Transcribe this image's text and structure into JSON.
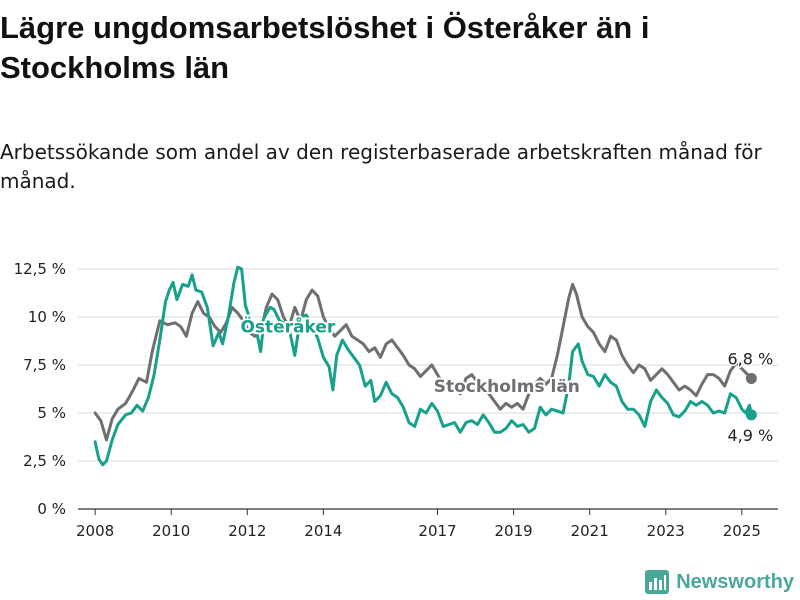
{
  "title": "Lägre ungdomsarbetslöshet i Österåker än i Stockholms län",
  "subtitle": "Arbetssökande som andel av den registerbaserade arbetskraften månad för månad.",
  "brand": {
    "name": "Newsworthy",
    "icon": "bar-chart-logo-icon"
  },
  "colors": {
    "osteraker": "#17a08c",
    "stockholm": "#6e6e73",
    "grid": "#d9d9d9",
    "axis": "#333333"
  },
  "chart_data": {
    "type": "line",
    "xlim": [
      2007.55,
      2025.95
    ],
    "ylim": [
      0,
      12.5
    ],
    "x_ticks": [
      {
        "value": 2008,
        "label": "2008"
      },
      {
        "value": 2010,
        "label": "2010"
      },
      {
        "value": 2012,
        "label": "2012"
      },
      {
        "value": 2014,
        "label": "2014"
      },
      {
        "value": 2017,
        "label": "2017"
      },
      {
        "value": 2019,
        "label": "2019"
      },
      {
        "value": 2021,
        "label": "2021"
      },
      {
        "value": 2023,
        "label": "2023"
      },
      {
        "value": 2025,
        "label": "2025"
      }
    ],
    "y_ticks": [
      {
        "value": 0,
        "label": "0 %"
      },
      {
        "value": 2.5,
        "label": "2,5 %"
      },
      {
        "value": 5,
        "label": "5 %"
      },
      {
        "value": 7.5,
        "label": "7,5 %"
      },
      {
        "value": 10,
        "label": "10 %"
      },
      {
        "value": 12.5,
        "label": "12,5 %"
      }
    ],
    "grid": true,
    "series": [
      {
        "name": "Stockholms län",
        "end_label": "6,8 %",
        "points": [
          [
            2008.0,
            5.0
          ],
          [
            2008.15,
            4.6
          ],
          [
            2008.3,
            3.6
          ],
          [
            2008.45,
            4.7
          ],
          [
            2008.6,
            5.2
          ],
          [
            2008.8,
            5.5
          ],
          [
            2009.0,
            6.2
          ],
          [
            2009.15,
            6.8
          ],
          [
            2009.35,
            6.6
          ],
          [
            2009.5,
            8.2
          ],
          [
            2009.7,
            9.8
          ],
          [
            2009.9,
            9.6
          ],
          [
            2010.1,
            9.7
          ],
          [
            2010.25,
            9.5
          ],
          [
            2010.4,
            9.0
          ],
          [
            2010.55,
            10.2
          ],
          [
            2010.7,
            10.8
          ],
          [
            2010.85,
            10.2
          ],
          [
            2011.0,
            10.0
          ],
          [
            2011.15,
            9.5
          ],
          [
            2011.3,
            9.2
          ],
          [
            2011.45,
            9.7
          ],
          [
            2011.6,
            10.5
          ],
          [
            2011.75,
            10.2
          ],
          [
            2011.9,
            9.8
          ],
          [
            2012.05,
            9.2
          ],
          [
            2012.2,
            9.0
          ],
          [
            2012.35,
            9.2
          ],
          [
            2012.5,
            10.5
          ],
          [
            2012.65,
            11.2
          ],
          [
            2012.8,
            10.9
          ],
          [
            2012.95,
            10.0
          ],
          [
            2013.1,
            9.5
          ],
          [
            2013.25,
            10.5
          ],
          [
            2013.4,
            9.8
          ],
          [
            2013.55,
            10.9
          ],
          [
            2013.7,
            11.4
          ],
          [
            2013.85,
            11.1
          ],
          [
            2014.0,
            10.0
          ],
          [
            2014.15,
            9.4
          ],
          [
            2014.3,
            9.0
          ],
          [
            2014.45,
            9.3
          ],
          [
            2014.6,
            9.6
          ],
          [
            2014.75,
            9.0
          ],
          [
            2014.9,
            8.8
          ],
          [
            2015.05,
            8.6
          ],
          [
            2015.2,
            8.2
          ],
          [
            2015.35,
            8.4
          ],
          [
            2015.5,
            7.9
          ],
          [
            2015.65,
            8.6
          ],
          [
            2015.8,
            8.8
          ],
          [
            2015.95,
            8.4
          ],
          [
            2016.1,
            8.0
          ],
          [
            2016.25,
            7.5
          ],
          [
            2016.4,
            7.3
          ],
          [
            2016.55,
            6.9
          ],
          [
            2016.7,
            7.2
          ],
          [
            2016.85,
            7.5
          ],
          [
            2017.0,
            7.0
          ],
          [
            2017.15,
            6.5
          ],
          [
            2017.3,
            6.6
          ],
          [
            2017.45,
            6.3
          ],
          [
            2017.6,
            6.0
          ],
          [
            2017.75,
            6.8
          ],
          [
            2017.9,
            7.0
          ],
          [
            2018.05,
            6.6
          ],
          [
            2018.2,
            6.3
          ],
          [
            2018.35,
            6.0
          ],
          [
            2018.5,
            5.6
          ],
          [
            2018.65,
            5.2
          ],
          [
            2018.8,
            5.5
          ],
          [
            2018.95,
            5.3
          ],
          [
            2019.1,
            5.5
          ],
          [
            2019.25,
            5.2
          ],
          [
            2019.4,
            6.0
          ],
          [
            2019.55,
            6.5
          ],
          [
            2019.7,
            6.8
          ],
          [
            2019.85,
            6.5
          ],
          [
            2020.0,
            6.8
          ],
          [
            2020.15,
            8.0
          ],
          [
            2020.3,
            9.5
          ],
          [
            2020.45,
            11.0
          ],
          [
            2020.55,
            11.7
          ],
          [
            2020.65,
            11.2
          ],
          [
            2020.8,
            10.0
          ],
          [
            2020.95,
            9.5
          ],
          [
            2021.1,
            9.2
          ],
          [
            2021.25,
            8.6
          ],
          [
            2021.4,
            8.2
          ],
          [
            2021.55,
            9.0
          ],
          [
            2021.7,
            8.8
          ],
          [
            2021.85,
            8.0
          ],
          [
            2022.0,
            7.5
          ],
          [
            2022.15,
            7.1
          ],
          [
            2022.3,
            7.5
          ],
          [
            2022.45,
            7.3
          ],
          [
            2022.6,
            6.7
          ],
          [
            2022.75,
            7.0
          ],
          [
            2022.9,
            7.3
          ],
          [
            2023.05,
            7.0
          ],
          [
            2023.2,
            6.6
          ],
          [
            2023.35,
            6.2
          ],
          [
            2023.5,
            6.4
          ],
          [
            2023.65,
            6.2
          ],
          [
            2023.8,
            5.9
          ],
          [
            2023.95,
            6.5
          ],
          [
            2024.1,
            7.0
          ],
          [
            2024.25,
            7.0
          ],
          [
            2024.4,
            6.8
          ],
          [
            2024.55,
            6.4
          ],
          [
            2024.7,
            7.2
          ],
          [
            2024.85,
            7.6
          ],
          [
            2025.0,
            7.3
          ],
          [
            2025.15,
            7.0
          ],
          [
            2025.25,
            6.8
          ]
        ]
      },
      {
        "name": "Österåker",
        "end_label": "4,9 %",
        "points": [
          [
            2008.0,
            3.5
          ],
          [
            2008.1,
            2.6
          ],
          [
            2008.2,
            2.3
          ],
          [
            2008.3,
            2.5
          ],
          [
            2008.45,
            3.6
          ],
          [
            2008.6,
            4.4
          ],
          [
            2008.8,
            4.9
          ],
          [
            2008.95,
            5.0
          ],
          [
            2009.1,
            5.4
          ],
          [
            2009.25,
            5.1
          ],
          [
            2009.4,
            5.8
          ],
          [
            2009.55,
            7.0
          ],
          [
            2009.7,
            8.8
          ],
          [
            2009.85,
            10.8
          ],
          [
            2009.95,
            11.4
          ],
          [
            2010.05,
            11.8
          ],
          [
            2010.15,
            10.9
          ],
          [
            2010.3,
            11.7
          ],
          [
            2010.45,
            11.6
          ],
          [
            2010.55,
            12.2
          ],
          [
            2010.65,
            11.4
          ],
          [
            2010.8,
            11.3
          ],
          [
            2010.95,
            10.5
          ],
          [
            2011.1,
            8.5
          ],
          [
            2011.25,
            9.2
          ],
          [
            2011.35,
            8.6
          ],
          [
            2011.5,
            10.0
          ],
          [
            2011.65,
            11.8
          ],
          [
            2011.75,
            12.6
          ],
          [
            2011.85,
            12.5
          ],
          [
            2011.95,
            10.6
          ],
          [
            2012.1,
            9.7
          ],
          [
            2012.25,
            9.2
          ],
          [
            2012.35,
            8.2
          ],
          [
            2012.45,
            10.0
          ],
          [
            2012.6,
            10.5
          ],
          [
            2012.7,
            10.4
          ],
          [
            2012.85,
            9.8
          ],
          [
            2012.95,
            9.7
          ],
          [
            2013.1,
            9.4
          ],
          [
            2013.25,
            8.0
          ],
          [
            2013.4,
            10.0
          ],
          [
            2013.55,
            10.1
          ],
          [
            2013.7,
            9.5
          ],
          [
            2013.85,
            8.9
          ],
          [
            2014.0,
            7.9
          ],
          [
            2014.15,
            7.4
          ],
          [
            2014.25,
            6.2
          ],
          [
            2014.35,
            8.0
          ],
          [
            2014.5,
            8.8
          ],
          [
            2014.65,
            8.3
          ],
          [
            2014.8,
            7.9
          ],
          [
            2014.95,
            7.5
          ],
          [
            2015.1,
            6.4
          ],
          [
            2015.25,
            6.7
          ],
          [
            2015.35,
            5.6
          ],
          [
            2015.5,
            5.9
          ],
          [
            2015.65,
            6.6
          ],
          [
            2015.8,
            6.0
          ],
          [
            2015.95,
            5.8
          ],
          [
            2016.1,
            5.3
          ],
          [
            2016.25,
            4.5
          ],
          [
            2016.4,
            4.3
          ],
          [
            2016.55,
            5.2
          ],
          [
            2016.7,
            5.0
          ],
          [
            2016.85,
            5.5
          ],
          [
            2017.0,
            5.1
          ],
          [
            2017.15,
            4.3
          ],
          [
            2017.3,
            4.4
          ],
          [
            2017.45,
            4.5
          ],
          [
            2017.6,
            4.0
          ],
          [
            2017.75,
            4.5
          ],
          [
            2017.9,
            4.6
          ],
          [
            2018.05,
            4.4
          ],
          [
            2018.2,
            4.9
          ],
          [
            2018.35,
            4.5
          ],
          [
            2018.5,
            4.0
          ],
          [
            2018.65,
            4.0
          ],
          [
            2018.8,
            4.2
          ],
          [
            2018.95,
            4.6
          ],
          [
            2019.1,
            4.3
          ],
          [
            2019.25,
            4.4
          ],
          [
            2019.4,
            4.0
          ],
          [
            2019.55,
            4.2
          ],
          [
            2019.7,
            5.3
          ],
          [
            2019.85,
            4.9
          ],
          [
            2020.0,
            5.2
          ],
          [
            2020.15,
            5.1
          ],
          [
            2020.3,
            5.0
          ],
          [
            2020.45,
            6.5
          ],
          [
            2020.55,
            8.2
          ],
          [
            2020.7,
            8.6
          ],
          [
            2020.8,
            7.7
          ],
          [
            2020.95,
            7.0
          ],
          [
            2021.1,
            6.9
          ],
          [
            2021.25,
            6.4
          ],
          [
            2021.4,
            7.0
          ],
          [
            2021.55,
            6.6
          ],
          [
            2021.7,
            6.4
          ],
          [
            2021.85,
            5.6
          ],
          [
            2022.0,
            5.2
          ],
          [
            2022.15,
            5.2
          ],
          [
            2022.3,
            4.9
          ],
          [
            2022.45,
            4.3
          ],
          [
            2022.6,
            5.6
          ],
          [
            2022.75,
            6.2
          ],
          [
            2022.9,
            5.8
          ],
          [
            2023.05,
            5.5
          ],
          [
            2023.2,
            4.9
          ],
          [
            2023.35,
            4.8
          ],
          [
            2023.5,
            5.1
          ],
          [
            2023.65,
            5.6
          ],
          [
            2023.8,
            5.4
          ],
          [
            2023.95,
            5.6
          ],
          [
            2024.1,
            5.4
          ],
          [
            2024.25,
            5.0
          ],
          [
            2024.4,
            5.1
          ],
          [
            2024.55,
            5.0
          ],
          [
            2024.7,
            6.0
          ],
          [
            2024.85,
            5.8
          ],
          [
            2025.0,
            5.2
          ],
          [
            2025.1,
            5.0
          ],
          [
            2025.2,
            5.4
          ],
          [
            2025.25,
            4.9
          ]
        ]
      }
    ]
  }
}
